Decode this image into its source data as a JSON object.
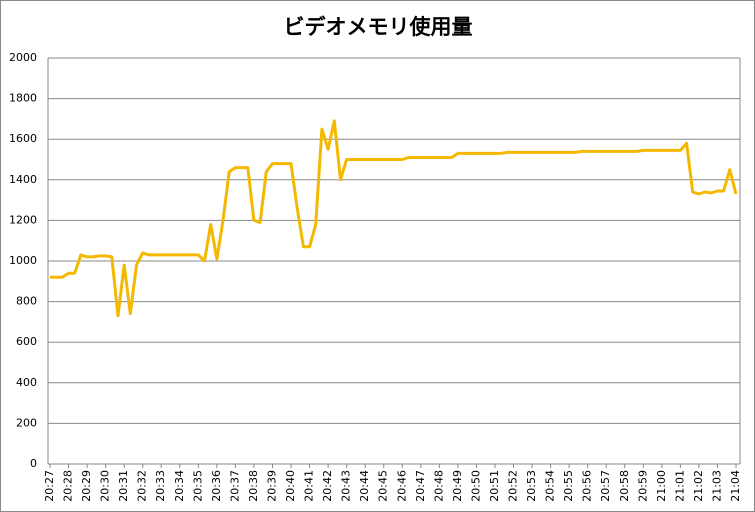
{
  "chart_data": {
    "type": "line",
    "title": "ビデオメモリ使用量",
    "categories": [
      "20:27",
      null,
      null,
      "20:28",
      null,
      null,
      "20:29",
      null,
      null,
      "20:30",
      null,
      null,
      "20:31",
      null,
      null,
      "20:32",
      null,
      null,
      "20:33",
      null,
      null,
      "20:34",
      null,
      null,
      "20:35",
      null,
      null,
      "20:36",
      null,
      null,
      "20:37",
      null,
      null,
      "20:38",
      null,
      null,
      "20:39",
      null,
      null,
      "20:40",
      null,
      null,
      "20:41",
      null,
      null,
      "20:42",
      null,
      null,
      "20:43",
      null,
      null,
      "20:44",
      null,
      null,
      "20:45",
      null,
      null,
      "20:46",
      null,
      null,
      "20:47",
      null,
      null,
      "20:48",
      null,
      null,
      "20:49",
      null,
      null,
      "20:50",
      null,
      null,
      "20:51",
      null,
      null,
      "20:52",
      null,
      null,
      "20:53",
      null,
      null,
      "20:54",
      null,
      null,
      "20:55",
      null,
      null,
      "20:56",
      null,
      null,
      "20:57",
      null,
      null,
      "20:58",
      null,
      null,
      "20:59",
      null,
      null,
      "21:00",
      null,
      null,
      "21:01",
      null,
      null,
      "21:02",
      null,
      null,
      "21:03",
      null,
      null,
      "21:04"
    ],
    "values": [
      920,
      920,
      920,
      940,
      940,
      1030,
      1020,
      1020,
      1025,
      1025,
      1020,
      730,
      980,
      740,
      980,
      1040,
      1030,
      1030,
      1030,
      1030,
      1030,
      1030,
      1030,
      1030,
      1030,
      1000,
      1180,
      1010,
      1200,
      1440,
      1460,
      1460,
      1460,
      1200,
      1190,
      1440,
      1480,
      1480,
      1480,
      1480,
      1260,
      1070,
      1070,
      1180,
      1650,
      1550,
      1690,
      1400,
      1500,
      1500,
      1500,
      1500,
      1500,
      1500,
      1500,
      1500,
      1500,
      1500,
      1510,
      1510,
      1510,
      1510,
      1510,
      1510,
      1510,
      1510,
      1530,
      1530,
      1530,
      1530,
      1530,
      1530,
      1530,
      1530,
      1535,
      1535,
      1535,
      1535,
      1535,
      1535,
      1535,
      1535,
      1535,
      1535,
      1535,
      1535,
      1540,
      1540,
      1540,
      1540,
      1540,
      1540,
      1540,
      1540,
      1540,
      1540,
      1545,
      1545,
      1545,
      1545,
      1545,
      1545,
      1545,
      1580,
      1340,
      1330,
      1340,
      1335,
      1345,
      1345,
      1450,
      1330
    ],
    "color": "#f5b800",
    "ylim": [
      0,
      2000
    ],
    "yticks": [
      0,
      200,
      400,
      600,
      800,
      1000,
      1200,
      1400,
      1600,
      1800,
      2000
    ],
    "grid": true
  }
}
